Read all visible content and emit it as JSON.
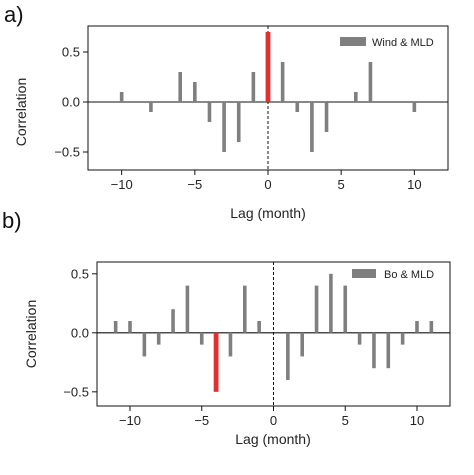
{
  "chart_data": [
    {
      "type": "bar",
      "panel_label": "a)",
      "xlabel": "Lag (month)",
      "ylabel": "Correlation",
      "xlim": [
        -12.3,
        12.3
      ],
      "ylim": [
        -0.68,
        0.76
      ],
      "xticks": [
        -10,
        -5,
        0,
        5,
        10
      ],
      "xtick_labels": [
        "−10",
        "−5",
        "0",
        "5",
        "10"
      ],
      "yticks": [
        -0.5,
        0.0,
        0.5
      ],
      "ytick_labels": [
        "−0.5",
        "0.0",
        "0.5"
      ],
      "legend": {
        "label": "Wind & MLD",
        "placement": "top-right",
        "color": "#7f7f7f"
      },
      "bar_color": "#7f7f7f",
      "highlight_color": "#e03030",
      "zero_lag_line": "dashed",
      "series": [
        {
          "name": "Wind & MLD",
          "x": [
            -10,
            -8,
            -6,
            -5,
            -4,
            -3,
            -2,
            -1,
            0,
            1,
            2,
            3,
            4,
            6,
            7,
            10
          ],
          "values": [
            0.1,
            -0.1,
            0.3,
            0.2,
            -0.2,
            -0.5,
            -0.4,
            0.3,
            0.7,
            0.4,
            -0.1,
            -0.5,
            -0.3,
            0.1,
            0.4,
            -0.1
          ]
        }
      ],
      "highlight_x": 0
    },
    {
      "type": "bar",
      "panel_label": "b)",
      "xlabel": "Lag (month)",
      "ylabel": "Correlation",
      "xlim": [
        -12.3,
        12.3
      ],
      "ylim": [
        -0.62,
        0.6
      ],
      "xticks": [
        -10,
        -5,
        0,
        5,
        10
      ],
      "xtick_labels": [
        "−10",
        "−5",
        "0",
        "5",
        "10"
      ],
      "yticks": [
        -0.5,
        0.0,
        0.5
      ],
      "ytick_labels": [
        "−0.5",
        "0.0",
        "0.5"
      ],
      "legend": {
        "label": "Bo & MLD",
        "placement": "top-right",
        "color": "#7f7f7f"
      },
      "bar_color": "#7f7f7f",
      "highlight_color": "#e03030",
      "zero_lag_line": "dashed",
      "series": [
        {
          "name": "Bo & MLD",
          "x": [
            -11,
            -10,
            -9,
            -8,
            -7,
            -6,
            -5,
            -4,
            -3,
            -2,
            -1,
            1,
            2,
            3,
            4,
            5,
            6,
            7,
            8,
            9,
            10,
            11
          ],
          "values": [
            0.1,
            0.1,
            -0.2,
            -0.1,
            0.2,
            0.4,
            -0.1,
            -0.5,
            -0.2,
            0.4,
            0.1,
            -0.4,
            -0.2,
            0.4,
            0.5,
            0.4,
            -0.1,
            -0.3,
            -0.3,
            -0.1,
            0.1,
            0.1
          ]
        }
      ],
      "highlight_x": -4
    }
  ]
}
